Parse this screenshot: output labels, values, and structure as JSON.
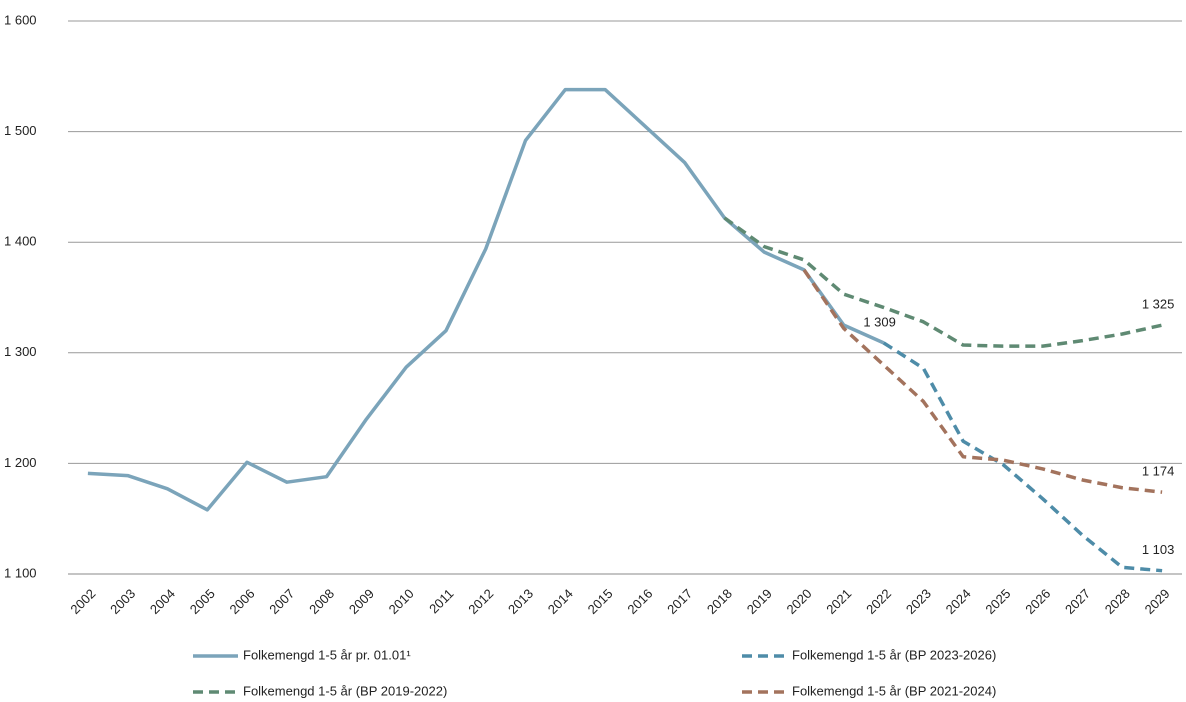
{
  "chart_data": {
    "type": "line",
    "categories": [
      "2002",
      "2003",
      "2004",
      "2005",
      "2006",
      "2007",
      "2008",
      "2009",
      "2010",
      "2011",
      "2012",
      "2013",
      "2014",
      "2015",
      "2016",
      "2017",
      "2018",
      "2019",
      "2020",
      "2021",
      "2022",
      "2023",
      "2024",
      "2025",
      "2026",
      "2027",
      "2028",
      "2029"
    ],
    "series": [
      {
        "name": "Folkemengd 1-5 år pr. 01.01¹",
        "color": "#7ba4ba",
        "dashed": false,
        "values": [
          1191,
          1189,
          1177,
          1158,
          1201,
          1183,
          1188,
          1240,
          1287,
          1320,
          1394,
          1492,
          1538,
          1538,
          1505,
          1472,
          1422,
          1391,
          1375,
          1325,
          1309,
          null,
          null,
          null,
          null,
          null,
          null,
          null
        ],
        "value_labels": [
          null,
          null,
          null,
          null,
          null,
          null,
          null,
          null,
          null,
          null,
          null,
          null,
          null,
          null,
          null,
          null,
          null,
          null,
          null,
          null,
          "1 309",
          null,
          null,
          null,
          null,
          null,
          null,
          null
        ]
      },
      {
        "name": "Folkemengd 1-5 år (BP 2023-2026)",
        "color": "#4e8ca8",
        "dashed": true,
        "values": [
          null,
          null,
          null,
          null,
          null,
          null,
          null,
          null,
          null,
          null,
          null,
          null,
          null,
          null,
          null,
          null,
          null,
          null,
          null,
          null,
          1309,
          1286,
          1220,
          1199,
          1168,
          1135,
          1106,
          1103
        ],
        "value_labels": [
          null,
          null,
          null,
          null,
          null,
          null,
          null,
          null,
          null,
          null,
          null,
          null,
          null,
          null,
          null,
          null,
          null,
          null,
          null,
          null,
          null,
          null,
          null,
          null,
          null,
          null,
          null,
          "1 103"
        ]
      },
      {
        "name": "Folkemengd 1-5 år (BP 2019-2022)",
        "color": "#5f8a73",
        "dashed": true,
        "values": [
          null,
          null,
          null,
          null,
          null,
          null,
          null,
          null,
          null,
          null,
          null,
          null,
          null,
          null,
          null,
          null,
          1422,
          1396,
          1384,
          1353,
          1341,
          1328,
          1307,
          1306,
          1306,
          1311,
          1317,
          1325
        ],
        "value_labels": [
          null,
          null,
          null,
          null,
          null,
          null,
          null,
          null,
          null,
          null,
          null,
          null,
          null,
          null,
          null,
          null,
          null,
          null,
          null,
          null,
          null,
          null,
          null,
          null,
          null,
          null,
          null,
          "1 325"
        ]
      },
      {
        "name": "Folkemengd 1-5 år (BP 2021-2024)",
        "color": "#a3735d",
        "dashed": true,
        "values": [
          null,
          null,
          null,
          null,
          null,
          null,
          null,
          null,
          null,
          null,
          null,
          null,
          null,
          null,
          null,
          null,
          null,
          null,
          1375,
          1322,
          1289,
          1256,
          1206,
          1203,
          1195,
          1185,
          1178,
          1174
        ],
        "value_labels": [
          null,
          null,
          null,
          null,
          null,
          null,
          null,
          null,
          null,
          null,
          null,
          null,
          null,
          null,
          null,
          null,
          null,
          null,
          null,
          null,
          null,
          null,
          null,
          null,
          null,
          null,
          null,
          "1 174"
        ]
      }
    ],
    "ylim": [
      1100,
      1600
    ],
    "yticks": [
      {
        "value": 1100,
        "label": "1 100"
      },
      {
        "value": 1200,
        "label": "1 200"
      },
      {
        "value": 1300,
        "label": "1 300"
      },
      {
        "value": 1400,
        "label": "1 400"
      },
      {
        "value": 1500,
        "label": "1 500"
      },
      {
        "value": 1600,
        "label": "1 600"
      }
    ],
    "grid": true
  }
}
